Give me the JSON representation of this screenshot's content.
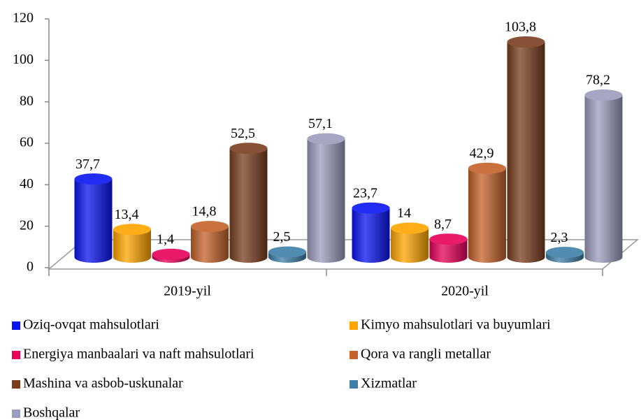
{
  "chart_data": {
    "type": "bar3d",
    "categories": [
      "2019-yil",
      "2020-yil"
    ],
    "ylim": [
      0,
      120
    ],
    "yticks": [
      0,
      20,
      40,
      60,
      80,
      100,
      120
    ],
    "legend": "bottom",
    "series": [
      {
        "name": "Oziq-ovqat mahsulotlari",
        "color": "#0a14f0",
        "values": [
          37.7,
          23.7
        ],
        "value_labels": [
          "37,7",
          "23,7"
        ]
      },
      {
        "name": "Kimyo mahsulotlari va buyumlari",
        "color": "#ffa500",
        "values": [
          13.4,
          14
        ],
        "value_labels": [
          "13,4",
          "14"
        ]
      },
      {
        "name": "Energiya manbaalari va naft mahsulotlari",
        "color": "#e8005a",
        "values": [
          1.4,
          8.7
        ],
        "value_labels": [
          "1,4",
          "8,7"
        ]
      },
      {
        "name": "Qora va rangli metallar",
        "color": "#c4622a",
        "values": [
          14.8,
          42.9
        ],
        "value_labels": [
          "14,8",
          "42,9"
        ]
      },
      {
        "name": "Mashina va asbob-uskunalar",
        "color": "#7a3e1e",
        "values": [
          52.5,
          103.8
        ],
        "value_labels": [
          "52,5",
          "103,8"
        ]
      },
      {
        "name": "Xizmatlar",
        "color": "#3f7fa8",
        "values": [
          2.5,
          2.3
        ],
        "value_labels": [
          "2,5",
          "2,3"
        ]
      },
      {
        "name": "Boshqalar",
        "color": "#9c9cbc",
        "values": [
          57.1,
          78.2
        ],
        "value_labels": [
          "57,1",
          "78,2"
        ]
      }
    ]
  }
}
